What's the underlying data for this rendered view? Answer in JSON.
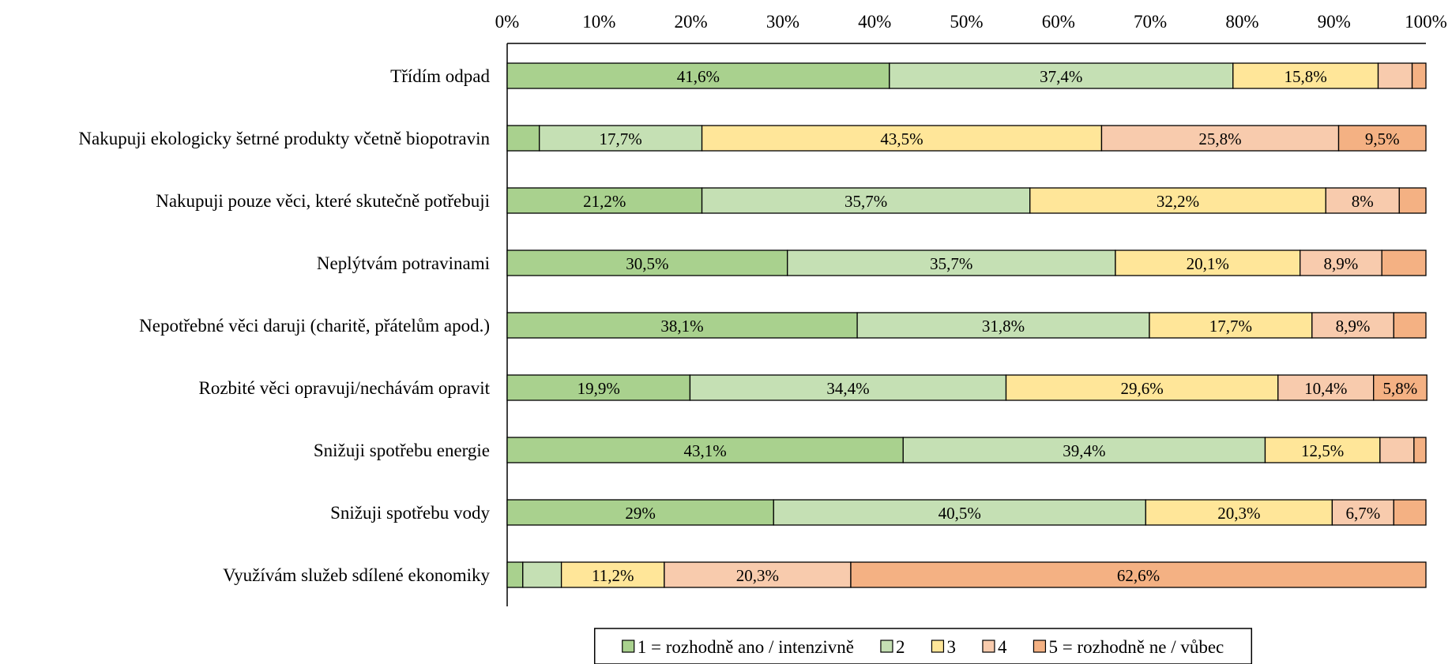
{
  "chart_data": {
    "type": "bar",
    "orientation": "horizontal",
    "stacked": "percent",
    "title": "",
    "xlabel": "",
    "ylabel": "",
    "xlim": [
      0,
      100
    ],
    "x_ticks": [
      "0%",
      "10%",
      "20%",
      "30%",
      "40%",
      "50%",
      "60%",
      "70%",
      "80%",
      "90%",
      "100%"
    ],
    "grid": false,
    "legend_position": "bottom",
    "categories": [
      "Třídím odpad",
      "Nakupuji ekologicky šetrné produkty včetně biopotravin",
      "Nakupuji pouze věci, které skutečně potřebuji",
      "Neplýtvám potravinami",
      "Nepotřebné věci daruji (charitě, přátelům apod.)",
      "Rozbité věci opravuji/nechávám opravit",
      "Snižuji spotřebu energie",
      "Snižuji spotřebu vody",
      "Využívám služeb sdílené ekonomiky"
    ],
    "series": [
      {
        "name": "1 = rozhodně ano / intenzivně",
        "color": "#a9d18e",
        "values": [
          41.6,
          3.5,
          21.2,
          30.5,
          38.1,
          19.9,
          43.1,
          29.0,
          1.7
        ],
        "labels": [
          "41,6%",
          "",
          "21,2%",
          "30,5%",
          "38,1%",
          "19,9%",
          "43,1%",
          "29%",
          ""
        ]
      },
      {
        "name": "2",
        "color": "#c5e0b4",
        "values": [
          37.4,
          17.7,
          35.7,
          35.7,
          31.8,
          34.4,
          39.4,
          40.5,
          4.2
        ],
        "labels": [
          "37,4%",
          "17,7%",
          "35,7%",
          "35,7%",
          "31,8%",
          "34,4%",
          "39,4%",
          "40,5%",
          ""
        ]
      },
      {
        "name": "3",
        "color": "#ffe699",
        "values": [
          15.8,
          43.5,
          32.2,
          20.1,
          17.7,
          29.6,
          12.5,
          20.3,
          11.2
        ],
        "labels": [
          "15,8%",
          "43,5%",
          "32,2%",
          "20,1%",
          "17,7%",
          "29,6%",
          "12,5%",
          "20,3%",
          "11,2%"
        ]
      },
      {
        "name": "4",
        "color": "#f8cbad",
        "values": [
          3.7,
          25.8,
          8.0,
          8.9,
          8.9,
          10.4,
          3.7,
          6.7,
          20.3
        ],
        "labels": [
          "",
          "25,8%",
          "8%",
          "8,9%",
          "8,9%",
          "10,4%",
          "",
          "6,7%",
          "20,3%"
        ]
      },
      {
        "name": "5 = rozhodně ne / vůbec",
        "color": "#f4b183",
        "values": [
          1.5,
          9.5,
          2.9,
          4.8,
          3.5,
          5.8,
          1.3,
          3.5,
          62.6
        ],
        "labels": [
          "",
          "9,5%",
          "",
          "",
          "",
          "5,8%",
          "",
          "",
          "62,6%"
        ]
      }
    ]
  }
}
